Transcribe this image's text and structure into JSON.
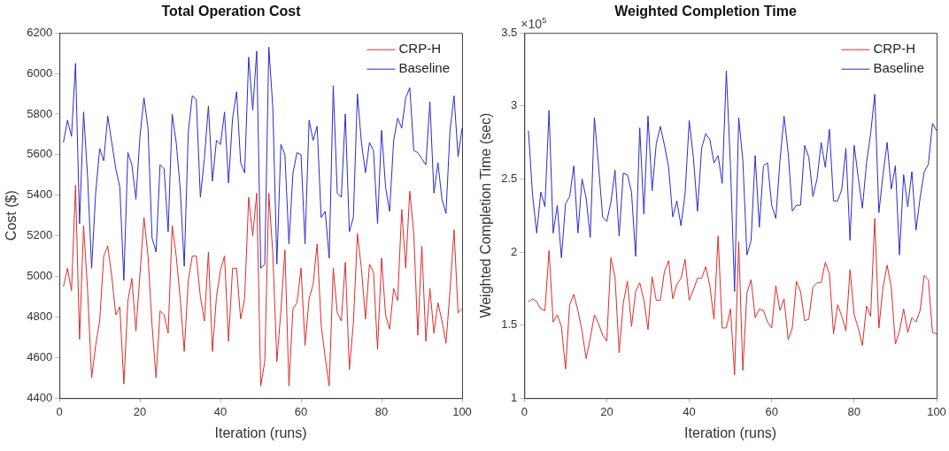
{
  "chart_data": [
    {
      "type": "line",
      "title": "Total Operation Cost",
      "xlabel": "Iteration (runs)",
      "ylabel": "Cost ($)",
      "x": [
        1,
        2,
        3,
        4,
        5,
        6,
        7,
        8,
        9,
        10,
        11,
        12,
        13,
        14,
        15,
        16,
        17,
        18,
        19,
        20,
        21,
        22,
        23,
        24,
        25,
        26,
        27,
        28,
        29,
        30,
        31,
        32,
        33,
        34,
        35,
        36,
        37,
        38,
        39,
        40,
        41,
        42,
        43,
        44,
        45,
        46,
        47,
        48,
        49,
        50,
        51,
        52,
        53,
        54,
        55,
        56,
        57,
        58,
        59,
        60,
        61,
        62,
        63,
        64,
        65,
        66,
        67,
        68,
        69,
        70,
        71,
        72,
        73,
        74,
        75,
        76,
        77,
        78,
        79,
        80,
        81,
        82,
        83,
        84,
        85,
        86,
        87,
        88,
        89,
        90,
        91,
        92,
        93,
        94,
        95,
        96,
        97,
        98,
        99,
        100
      ],
      "series": [
        {
          "name": "CRP-H",
          "color": "#dd2b2b",
          "values": [
            4950,
            5040,
            4930,
            5450,
            4690,
            5250,
            4930,
            4500,
            4660,
            4780,
            5100,
            5150,
            5000,
            4810,
            4850,
            4470,
            4880,
            4990,
            4730,
            5010,
            5290,
            5100,
            4760,
            4500,
            4830,
            4810,
            4720,
            5250,
            5100,
            4890,
            4630,
            4980,
            5100,
            5100,
            4900,
            4780,
            5120,
            4630,
            4900,
            5030,
            5100,
            4680,
            5040,
            5040,
            4790,
            4890,
            5390,
            5200,
            5410,
            4460,
            4580,
            5410,
            5110,
            4580,
            4830,
            5130,
            4460,
            4840,
            4870,
            5040,
            4660,
            4890,
            4960,
            5160,
            4760,
            4600,
            4460,
            5040,
            4820,
            4780,
            5070,
            4540,
            4770,
            5210,
            5040,
            4790,
            5060,
            5020,
            4640,
            5090,
            4810,
            4740,
            4940,
            4880,
            5330,
            5040,
            5420,
            5210,
            4710,
            5150,
            4680,
            4940,
            4720,
            4870,
            4780,
            4670,
            4930,
            5230,
            4820,
            4840
          ]
        },
        {
          "name": "Baseline",
          "color": "#2b2bcc",
          "values": [
            5660,
            5770,
            5690,
            6050,
            5260,
            5810,
            5490,
            5040,
            5410,
            5630,
            5570,
            5790,
            5660,
            5530,
            5440,
            4980,
            5610,
            5550,
            5380,
            5690,
            5880,
            5730,
            5190,
            5120,
            5550,
            5530,
            5220,
            5800,
            5660,
            5430,
            5050,
            5710,
            5890,
            5870,
            5390,
            5580,
            5840,
            5470,
            5670,
            5650,
            5810,
            5460,
            5780,
            5910,
            5560,
            5510,
            6080,
            5820,
            6110,
            5040,
            5060,
            6130,
            5830,
            5060,
            5650,
            5600,
            5160,
            5510,
            5610,
            5600,
            5160,
            5770,
            5670,
            5740,
            5290,
            5320,
            5090,
            5940,
            5410,
            5390,
            5800,
            5220,
            5290,
            5900,
            5660,
            5510,
            5660,
            5620,
            5260,
            5720,
            5440,
            5320,
            5670,
            5780,
            5730,
            5880,
            5930,
            5620,
            5610,
            5580,
            5550,
            5860,
            5410,
            5560,
            5380,
            5310,
            5720,
            5890,
            5590,
            5730
          ]
        }
      ],
      "xlim": [
        0,
        100
      ],
      "xticks": [
        0,
        20,
        40,
        60,
        80,
        100
      ],
      "ylim": [
        4400,
        6200
      ],
      "yticks": [
        4400,
        4600,
        4800,
        5000,
        5200,
        5400,
        5600,
        5800,
        6000,
        6200
      ],
      "legend": "top right",
      "marker": "none",
      "line_style": "solid"
    },
    {
      "type": "line",
      "title": "Weighted Completion Time",
      "xlabel": "Iteration (runs)",
      "ylabel": "Weighted Completion Time (sec)",
      "annotations": [
        "×10$^{5}$"
      ],
      "x": [
        1,
        2,
        3,
        4,
        5,
        6,
        7,
        8,
        9,
        10,
        11,
        12,
        13,
        14,
        15,
        16,
        17,
        18,
        19,
        20,
        21,
        22,
        23,
        24,
        25,
        26,
        27,
        28,
        29,
        30,
        31,
        32,
        33,
        34,
        35,
        36,
        37,
        38,
        39,
        40,
        41,
        42,
        43,
        44,
        45,
        46,
        47,
        48,
        49,
        50,
        51,
        52,
        53,
        54,
        55,
        56,
        57,
        58,
        59,
        60,
        61,
        62,
        63,
        64,
        65,
        66,
        67,
        68,
        69,
        70,
        71,
        72,
        73,
        74,
        75,
        76,
        77,
        78,
        79,
        80,
        81,
        82,
        83,
        84,
        85,
        86,
        87,
        88,
        89,
        90,
        91,
        92,
        93,
        94,
        95,
        96,
        97,
        98,
        99,
        100
      ],
      "series": [
        {
          "name": "CRP-H",
          "color": "#dd2b2b",
          "values": [
            1.66,
            1.68,
            1.66,
            1.61,
            1.6,
            2.01,
            1.52,
            1.57,
            1.49,
            1.2,
            1.64,
            1.71,
            1.6,
            1.46,
            1.27,
            1.41,
            1.57,
            1.51,
            1.43,
            1.39,
            1.96,
            1.83,
            1.31,
            1.65,
            1.8,
            1.49,
            1.73,
            1.79,
            1.67,
            1.47,
            1.83,
            1.67,
            1.67,
            1.87,
            1.94,
            1.68,
            1.78,
            1.82,
            1.95,
            1.67,
            1.74,
            1.82,
            1.82,
            1.9,
            1.77,
            1.54,
            2.11,
            1.48,
            1.48,
            1.61,
            1.16,
            2.07,
            1.19,
            1.72,
            1.81,
            1.55,
            1.61,
            1.6,
            1.52,
            1.48,
            1.77,
            1.6,
            1.68,
            1.4,
            1.48,
            1.8,
            1.73,
            1.53,
            1.54,
            1.76,
            1.79,
            1.79,
            1.93,
            1.85,
            1.44,
            1.64,
            1.56,
            1.46,
            1.88,
            1.57,
            1.48,
            1.36,
            1.63,
            1.56,
            2.23,
            1.48,
            1.76,
            1.91,
            1.76,
            1.37,
            1.46,
            1.61,
            1.45,
            1.55,
            1.52,
            1.6,
            1.84,
            1.81,
            1.45,
            1.44
          ]
        },
        {
          "name": "Baseline",
          "color": "#2b2bcc",
          "values": [
            2.83,
            2.39,
            2.13,
            2.41,
            2.31,
            2.97,
            2.13,
            2.32,
            1.96,
            2.33,
            2.38,
            2.59,
            2.13,
            2.5,
            2.37,
            2.1,
            2.92,
            2.59,
            2.24,
            2.21,
            2.34,
            2.56,
            2.11,
            2.54,
            2.53,
            2.41,
            1.97,
            2.85,
            2.26,
            2.93,
            2.42,
            2.74,
            2.86,
            2.73,
            2.58,
            2.24,
            2.35,
            2.18,
            2.4,
            2.9,
            2.65,
            2.28,
            2.71,
            2.81,
            2.77,
            2.61,
            2.66,
            2.47,
            3.24,
            2.59,
            1.73,
            2.92,
            2.63,
            1.98,
            2.08,
            2.66,
            2.17,
            2.59,
            2.61,
            2.32,
            2.23,
            2.62,
            2.93,
            2.68,
            2.28,
            2.32,
            2.32,
            2.73,
            2.65,
            2.38,
            2.5,
            2.75,
            2.58,
            2.84,
            2.35,
            2.35,
            2.43,
            2.71,
            2.08,
            2.73,
            2.51,
            2.3,
            2.61,
            2.81,
            3.08,
            2.27,
            2.53,
            2.75,
            2.43,
            2.59,
            1.98,
            2.53,
            2.31,
            2.55,
            2.15,
            2.37,
            2.55,
            2.6,
            2.88,
            2.83
          ]
        }
      ],
      "xlim": [
        0,
        100
      ],
      "xticks": [
        0,
        20,
        40,
        60,
        80,
        100
      ],
      "ylim": [
        1,
        3.5
      ],
      "yticks": [
        1,
        1.5,
        2,
        2.5,
        3,
        3.5
      ],
      "legend": "top right",
      "marker": "none",
      "line_style": "solid"
    }
  ]
}
